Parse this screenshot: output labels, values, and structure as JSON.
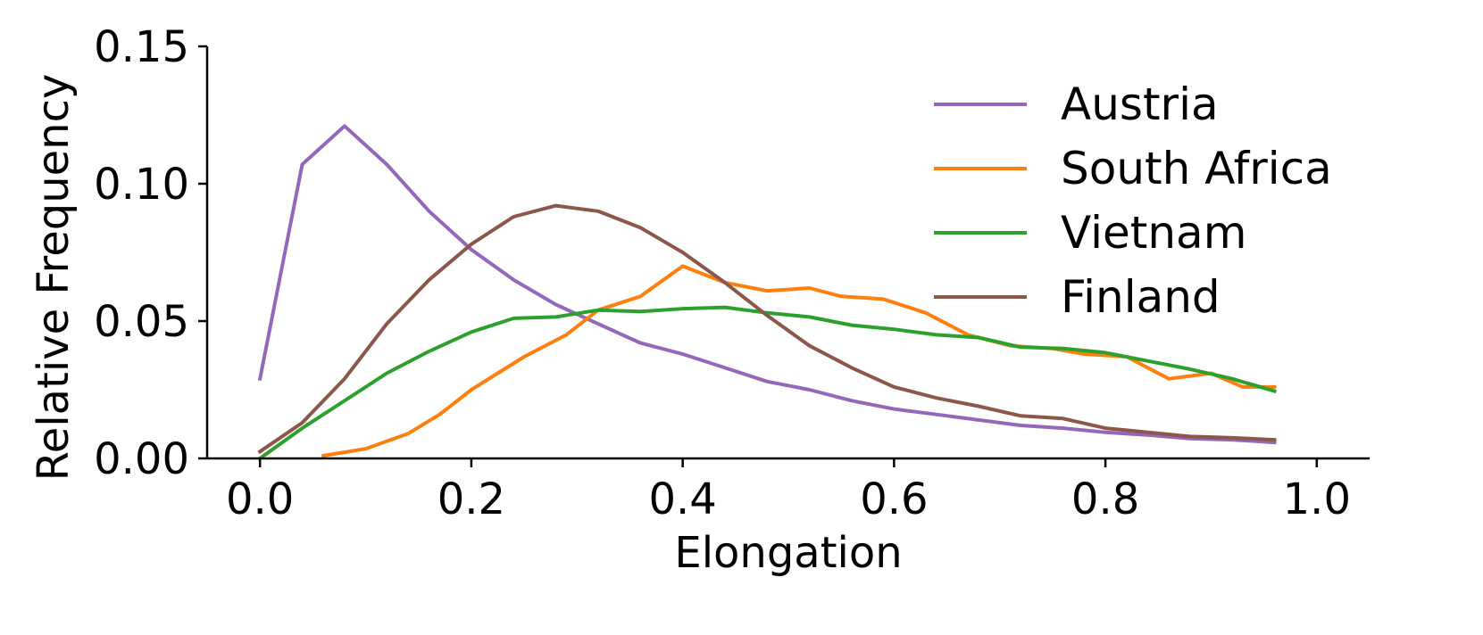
{
  "chart_data": {
    "type": "line",
    "title": "",
    "xlabel": "Elongation",
    "ylabel": "Relative Frequency",
    "xlim": [
      -0.05,
      1.05
    ],
    "ylim": [
      0.0,
      0.15
    ],
    "xticks": [
      0.0,
      0.2,
      0.4,
      0.6,
      0.8,
      1.0
    ],
    "xtick_labels": [
      "0.0",
      "0.2",
      "0.4",
      "0.6",
      "0.8",
      "1.0"
    ],
    "yticks": [
      0.0,
      0.05,
      0.1,
      0.15
    ],
    "ytick_labels": [
      "0.00",
      "0.05",
      "0.10",
      "0.15"
    ],
    "grid": false,
    "legend_position": "top-right",
    "series": [
      {
        "name": "Austria",
        "color": "#9467bd",
        "x": [
          0.0,
          0.04,
          0.08,
          0.12,
          0.16,
          0.2,
          0.24,
          0.28,
          0.32,
          0.36,
          0.4,
          0.44,
          0.48,
          0.52,
          0.56,
          0.6,
          0.64,
          0.68,
          0.72,
          0.76,
          0.8,
          0.84,
          0.88,
          0.92,
          0.96
        ],
        "y": [
          0.029,
          0.107,
          0.121,
          0.107,
          0.09,
          0.076,
          0.065,
          0.056,
          0.049,
          0.042,
          0.038,
          0.033,
          0.028,
          0.025,
          0.021,
          0.018,
          0.016,
          0.014,
          0.012,
          0.011,
          0.0095,
          0.0085,
          0.0072,
          0.0068,
          0.0058
        ]
      },
      {
        "name": "South Africa",
        "color": "#ff7f0e",
        "x": [
          0.06,
          0.1,
          0.14,
          0.17,
          0.2,
          0.25,
          0.29,
          0.32,
          0.36,
          0.4,
          0.44,
          0.48,
          0.52,
          0.55,
          0.59,
          0.63,
          0.67,
          0.71,
          0.75,
          0.78,
          0.82,
          0.86,
          0.9,
          0.93,
          0.96
        ],
        "y": [
          0.001,
          0.0035,
          0.009,
          0.016,
          0.025,
          0.037,
          0.045,
          0.054,
          0.059,
          0.07,
          0.064,
          0.061,
          0.062,
          0.059,
          0.058,
          0.053,
          0.045,
          0.041,
          0.04,
          0.038,
          0.037,
          0.029,
          0.031,
          0.026,
          0.026
        ]
      },
      {
        "name": "Vietnam",
        "color": "#2ca02c",
        "x": [
          0.0,
          0.04,
          0.08,
          0.12,
          0.16,
          0.2,
          0.24,
          0.28,
          0.32,
          0.36,
          0.4,
          0.44,
          0.48,
          0.52,
          0.56,
          0.6,
          0.64,
          0.68,
          0.72,
          0.76,
          0.8,
          0.84,
          0.88,
          0.92,
          0.96
        ],
        "y": [
          0.0,
          0.011,
          0.021,
          0.031,
          0.039,
          0.046,
          0.051,
          0.0515,
          0.054,
          0.0535,
          0.0545,
          0.055,
          0.053,
          0.0515,
          0.0485,
          0.047,
          0.045,
          0.044,
          0.0405,
          0.04,
          0.0385,
          0.0355,
          0.0325,
          0.029,
          0.0245
        ]
      },
      {
        "name": "Finland",
        "color": "#8c564b",
        "x": [
          0.0,
          0.04,
          0.08,
          0.12,
          0.16,
          0.2,
          0.24,
          0.28,
          0.32,
          0.36,
          0.4,
          0.44,
          0.48,
          0.52,
          0.56,
          0.6,
          0.64,
          0.68,
          0.72,
          0.76,
          0.8,
          0.84,
          0.88,
          0.92,
          0.96
        ],
        "y": [
          0.0025,
          0.013,
          0.029,
          0.049,
          0.065,
          0.078,
          0.088,
          0.092,
          0.09,
          0.084,
          0.075,
          0.064,
          0.052,
          0.041,
          0.033,
          0.026,
          0.022,
          0.019,
          0.0155,
          0.0145,
          0.011,
          0.0095,
          0.008,
          0.0075,
          0.0068
        ]
      }
    ]
  }
}
